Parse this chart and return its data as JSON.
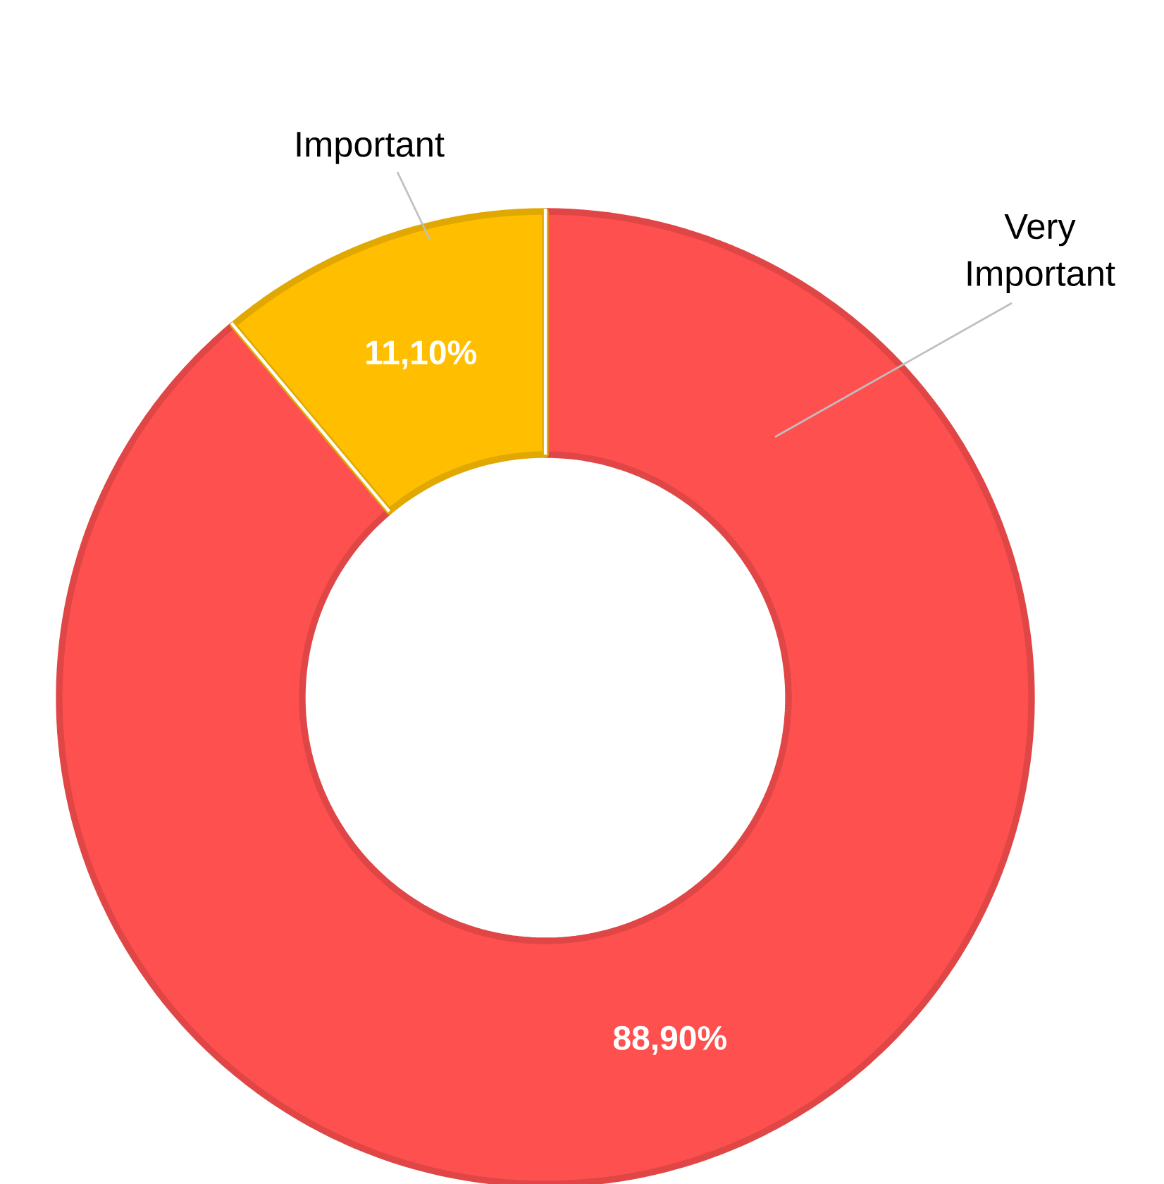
{
  "chart_data": {
    "type": "donut",
    "categories": [
      "Very Important",
      "Important"
    ],
    "values": [
      88.9,
      11.1
    ],
    "colors": [
      "#ff5050",
      "#ffbf00"
    ],
    "value_labels": [
      "88,90%",
      "11,10%"
    ]
  }
}
